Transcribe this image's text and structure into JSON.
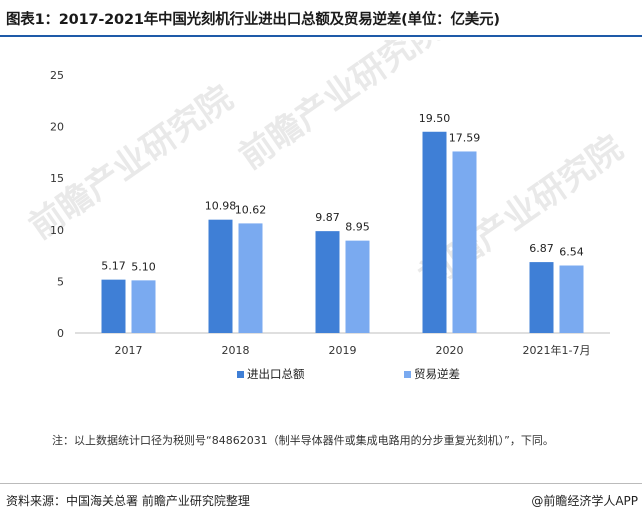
{
  "title": "图表1：2017-2021年中国光刻机行业进出口总额及贸易逆差(单位：亿美元)",
  "watermark": "前瞻产业研究院",
  "note": "注：以上数据统计口径为税则号“84862031（制半导体器件或集成电路用的分步重复光刻机）”，下同。",
  "source": "资料来源：中国海关总署 前瞻产业研究院整理",
  "credit": "@前瞻经济学人APP",
  "colors": {
    "series1": "#3f7fd6",
    "series2": "#7aaaf0",
    "title_rule": "#1e5aa8"
  },
  "chart_data": {
    "type": "bar",
    "categories": [
      "2017",
      "2018",
      "2019",
      "2020",
      "2021年1-7月"
    ],
    "series": [
      {
        "name": "进出口总额",
        "values": [
          5.17,
          10.98,
          9.87,
          19.5,
          6.87
        ],
        "value_labels": [
          "5.17",
          "10.98",
          "9.87",
          "19.50",
          "6.87"
        ]
      },
      {
        "name": "贸易逆差",
        "values": [
          5.1,
          10.62,
          8.95,
          17.59,
          6.54
        ],
        "value_labels": [
          "5.10",
          "10.62",
          "8.95",
          "17.59",
          "6.54"
        ]
      }
    ],
    "yticks": [
      "0",
      "5",
      "10",
      "15",
      "20",
      "25"
    ],
    "ylim": [
      0,
      25
    ],
    "grid": false,
    "legend_position": "bottom"
  }
}
